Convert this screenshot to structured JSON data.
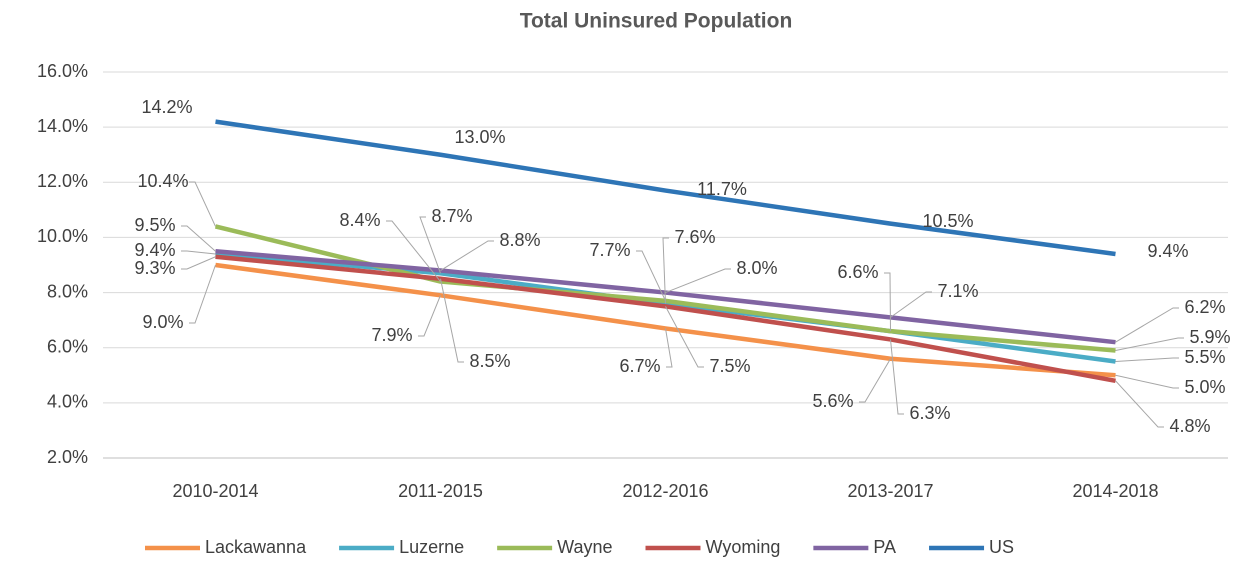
{
  "chart_data": {
    "type": "line",
    "title": "Total Uninsured Population",
    "categories": [
      "2010-2014",
      "2011-2015",
      "2012-2016",
      "2013-2017",
      "2014-2018"
    ],
    "ylim": [
      2,
      16
    ],
    "yticks": [
      {
        "value": 2,
        "label": "2.0%"
      },
      {
        "value": 4,
        "label": "4.0%"
      },
      {
        "value": 6,
        "label": "6.0%"
      },
      {
        "value": 8,
        "label": "8.0%"
      },
      {
        "value": 10,
        "label": "10.0%"
      },
      {
        "value": 12,
        "label": "12.0%"
      },
      {
        "value": 14,
        "label": "14.0%"
      },
      {
        "value": 16,
        "label": "16.0%"
      }
    ],
    "grid": true,
    "legend": "bottom",
    "series": [
      {
        "name": "Lackawanna",
        "color": "#f4914a",
        "values": [
          9.0,
          7.9,
          6.7,
          5.6,
          5.0
        ],
        "value_labels": [
          "9.0%",
          "7.9%",
          "6.7%",
          "5.6%",
          "5.0%"
        ]
      },
      {
        "name": "Luzerne",
        "color": "#4bacc6",
        "values": [
          9.4,
          8.7,
          7.6,
          6.6,
          5.5
        ],
        "value_labels": [
          "9.4%",
          "8.7%",
          "7.6%",
          null,
          "5.5%"
        ]
      },
      {
        "name": "Wayne",
        "color": "#9bbb59",
        "values": [
          10.4,
          8.4,
          7.7,
          6.6,
          5.9
        ],
        "value_labels": [
          "10.4%",
          "8.4%",
          "7.7%",
          "6.6%",
          "5.9%"
        ]
      },
      {
        "name": "Wyoming",
        "color": "#c0504d",
        "values": [
          9.3,
          8.5,
          7.5,
          6.3,
          4.8
        ],
        "value_labels": [
          "9.3%",
          "8.5%",
          "7.5%",
          "6.3%",
          "4.8%"
        ]
      },
      {
        "name": "PA",
        "color": "#8064a2",
        "values": [
          9.5,
          8.8,
          8.0,
          7.1,
          6.2
        ],
        "value_labels": [
          "9.5%",
          "8.8%",
          "8.0%",
          "7.1%",
          "6.2%"
        ]
      },
      {
        "name": "US",
        "color": "#2e75b6",
        "values": [
          14.2,
          13.0,
          11.7,
          10.5,
          9.4
        ],
        "value_labels": [
          "14.2%",
          "13.0%",
          "11.7%",
          "10.5%",
          "9.4%"
        ]
      }
    ]
  }
}
